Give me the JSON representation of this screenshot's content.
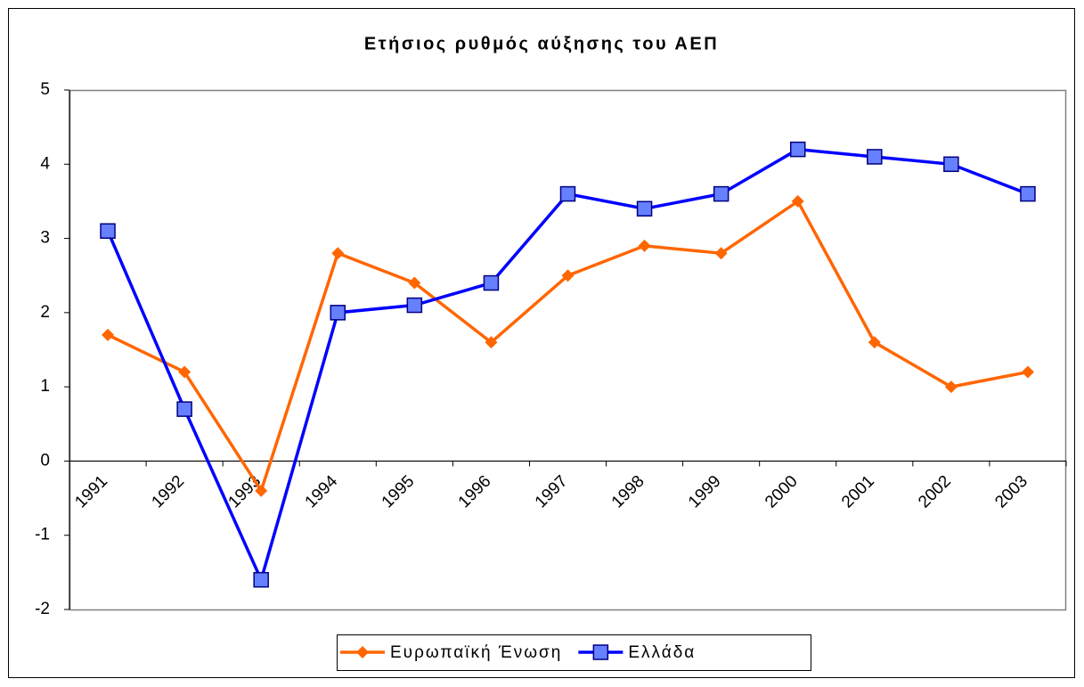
{
  "chart_data": {
    "type": "line",
    "title": "Ετήσιος ρυθμός αύξησης του ΑΕΠ",
    "categories": [
      "1991",
      "1992",
      "1993",
      "1994",
      "1995",
      "1996",
      "1997",
      "1998",
      "1999",
      "2000",
      "2001",
      "2002",
      "2003"
    ],
    "series": [
      {
        "name": "Ευρωπαϊκή Ένωση",
        "color": "#ff6600",
        "marker": "diamond",
        "values": [
          1.7,
          1.2,
          -0.4,
          2.8,
          2.4,
          1.6,
          2.5,
          2.9,
          2.8,
          3.5,
          1.6,
          1.0,
          1.2
        ]
      },
      {
        "name": "Ελλάδα",
        "color": "#0000ff",
        "marker": "square",
        "values": [
          3.1,
          0.7,
          -1.6,
          2.0,
          2.1,
          2.4,
          3.6,
          3.4,
          3.6,
          4.2,
          4.1,
          4.0,
          3.6
        ]
      }
    ],
    "ylim": [
      -2,
      5
    ],
    "yticks": [
      -2,
      -1,
      0,
      1,
      2,
      3,
      4,
      5
    ],
    "grid": false,
    "legend": "bottom"
  }
}
